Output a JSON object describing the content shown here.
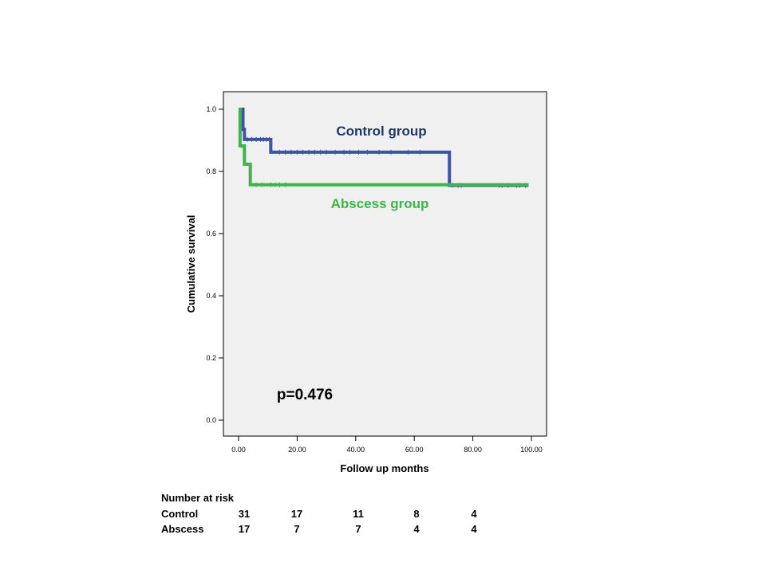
{
  "chart_data": {
    "type": "line",
    "subtype": "kaplan-meier",
    "title": "",
    "xlabel": "Follow up months",
    "ylabel": "Cumulative survival",
    "xlim": [
      0,
      100
    ],
    "ylim": [
      0,
      1
    ],
    "x_ticks": [
      0,
      20,
      40,
      60,
      80,
      100
    ],
    "x_tick_labels": [
      "0.00",
      "20.00",
      "40.00",
      "60.00",
      "80.00",
      "100.00"
    ],
    "y_ticks": [
      0,
      0.2,
      0.4,
      0.6,
      0.8,
      1.0
    ],
    "y_tick_labels": [
      "0.0",
      "0.2",
      "0.4",
      "0.6",
      "0.8",
      "1.0"
    ],
    "grid": false,
    "plot_background": "#f0f0f0",
    "series": [
      {
        "name": "Control group",
        "color": "#3d53a4",
        "steps": [
          [
            0,
            1.0
          ],
          [
            1.5,
            0.935
          ],
          [
            2,
            0.903
          ],
          [
            11,
            0.862
          ],
          [
            72,
            0.755
          ],
          [
            99,
            0.755
          ]
        ],
        "censored": [
          3,
          4.5,
          6,
          7.5,
          8.5,
          9.5,
          10.5,
          14,
          16,
          18,
          20,
          22,
          24,
          26,
          28,
          30,
          33,
          36,
          38,
          41,
          44,
          48,
          52,
          58,
          62,
          73,
          75,
          76,
          89,
          90,
          92,
          95,
          96,
          98
        ]
      },
      {
        "name": "Abscess group",
        "color": "#3cb54a",
        "steps": [
          [
            0,
            1.0
          ],
          [
            0.5,
            0.882
          ],
          [
            2,
            0.823
          ],
          [
            4,
            0.757
          ],
          [
            99,
            0.757
          ]
        ],
        "censored": [
          1,
          6,
          8,
          11,
          12.5,
          14,
          16
        ]
      }
    ],
    "annotations": {
      "control_label": "Control group",
      "abscess_label": "Abscess group",
      "p_value": "p=0.476"
    },
    "risk_table": {
      "title": "Number at risk",
      "rows": [
        {
          "label": "Control",
          "values": [
            "31",
            "17",
            "11",
            "8",
            "4"
          ]
        },
        {
          "label": "Abscess",
          "values": [
            "17",
            "7",
            "7",
            "4",
            "4"
          ]
        }
      ]
    }
  }
}
